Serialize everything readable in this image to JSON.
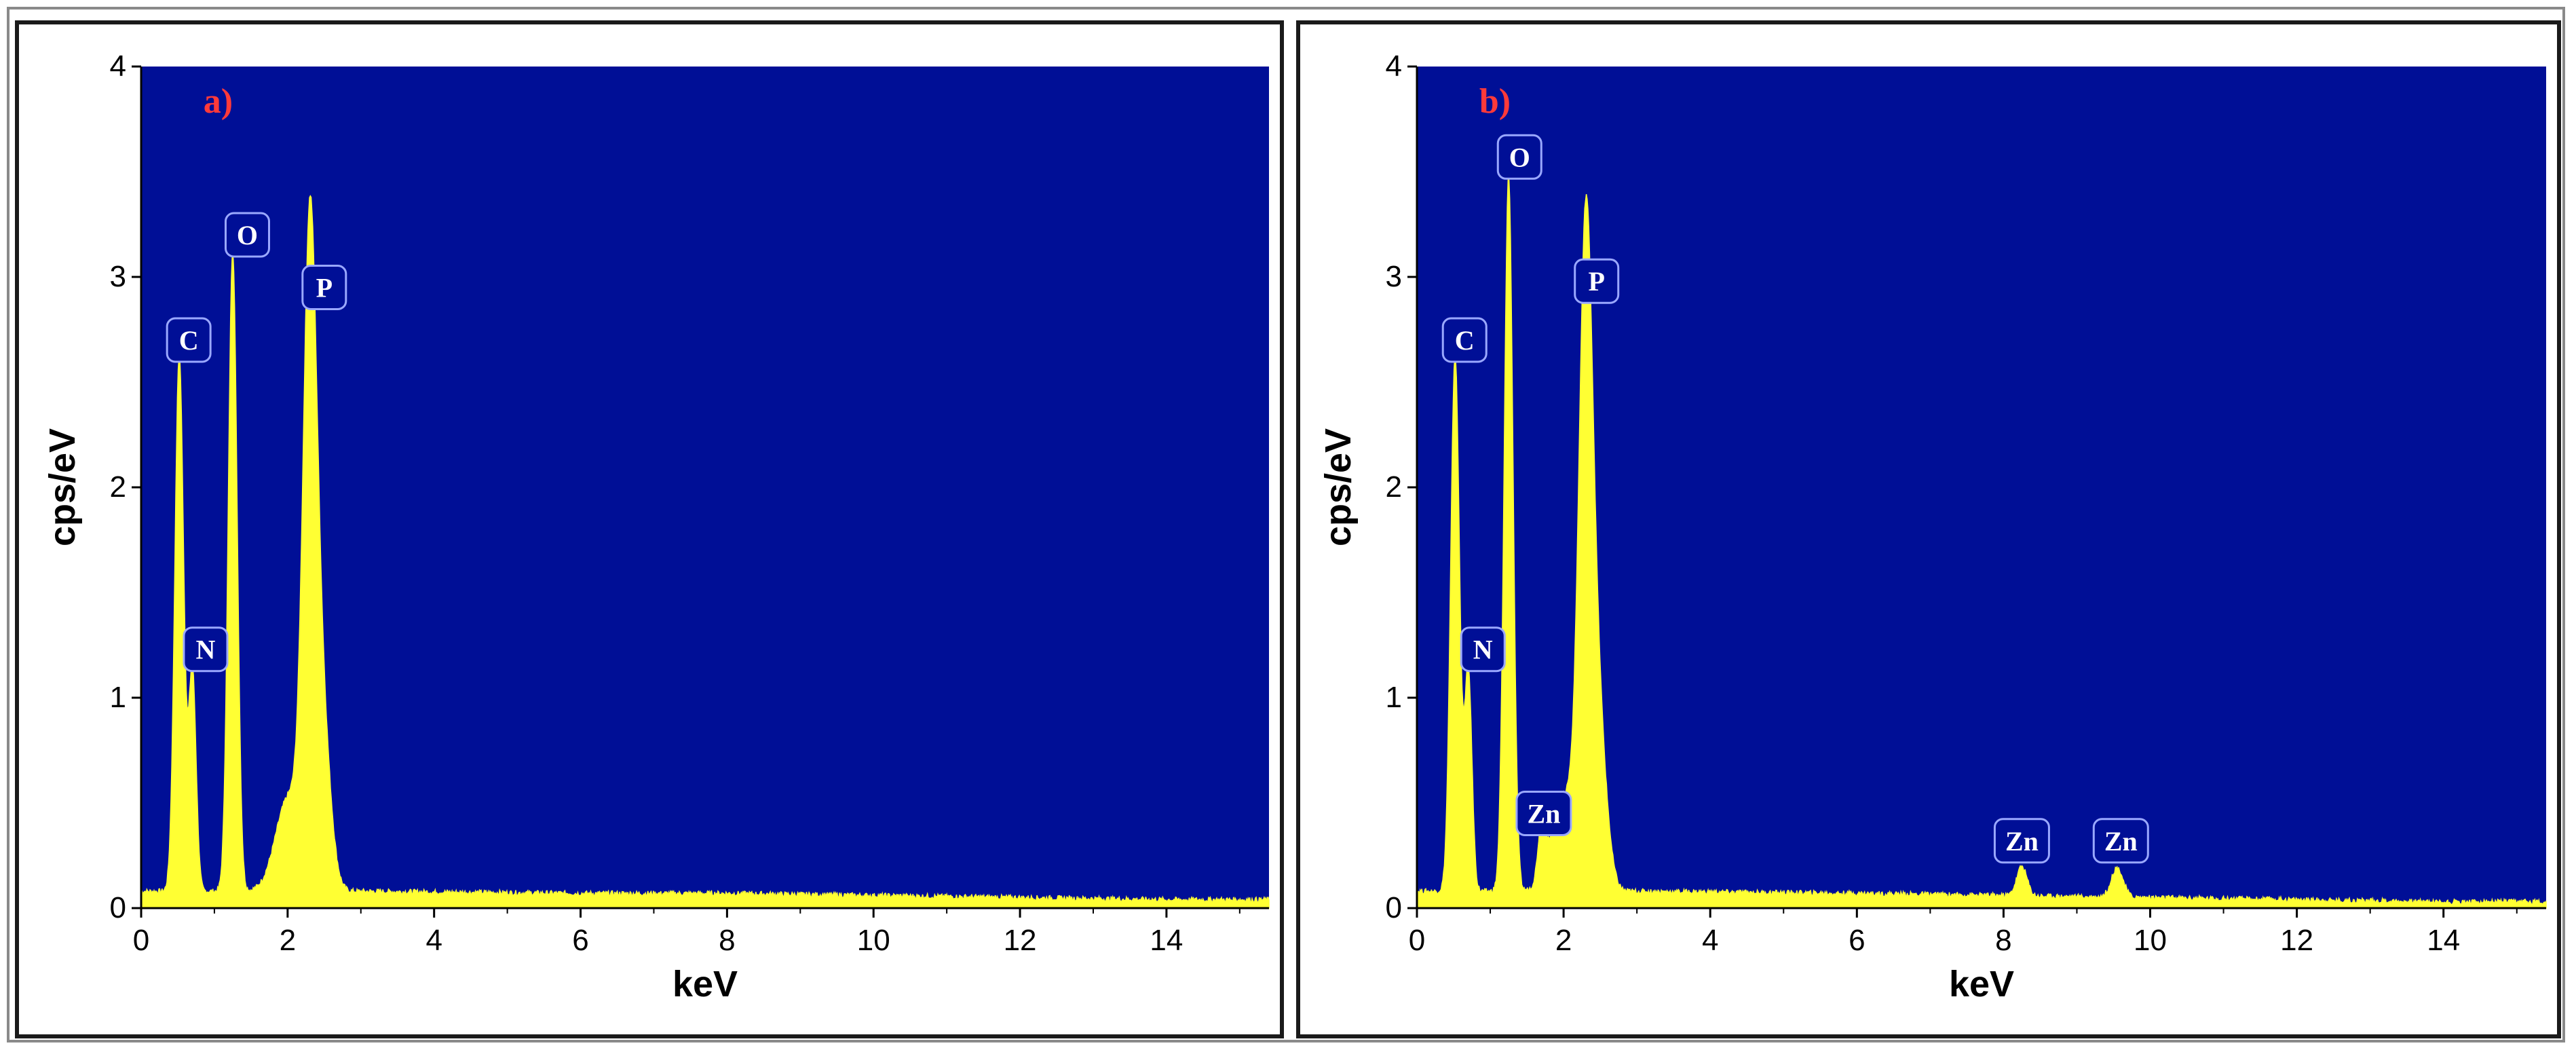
{
  "colors": {
    "plot_bg": "#000f96",
    "spectrum": "#ffff33",
    "panel_label": "#ff3a3a",
    "badge_border": "#9aa8ff"
  },
  "chart_data": [
    {
      "type": "area",
      "panel_label": "a)",
      "xlabel": "keV",
      "ylabel": "cps/eV",
      "xlim": [
        0,
        15.4
      ],
      "ylim": [
        0,
        4
      ],
      "x_ticks": [
        "0",
        "2",
        "4",
        "6",
        "8",
        "10",
        "12",
        "14"
      ],
      "y_ticks": [
        "0",
        "1",
        "2",
        "3",
        "4"
      ],
      "grid": false,
      "baseline": [
        [
          0.0,
          0.08
        ],
        [
          3,
          0.08
        ],
        [
          6,
          0.07
        ],
        [
          8,
          0.07
        ],
        [
          10,
          0.06
        ],
        [
          12,
          0.05
        ],
        [
          14,
          0.04
        ],
        [
          15.4,
          0.04
        ]
      ],
      "peaks": [
        {
          "x": 0.52,
          "height": 2.55,
          "width": 0.06
        },
        {
          "x": 0.7,
          "height": 1.05,
          "width": 0.05
        },
        {
          "x": 1.25,
          "height": 3.05,
          "width": 0.06
        },
        {
          "x": 2.02,
          "height": 0.45,
          "width": 0.18
        },
        {
          "x": 2.3,
          "height": 2.75,
          "width": 0.09
        },
        {
          "x": 2.45,
          "height": 0.9,
          "width": 0.12
        }
      ],
      "annotations": [
        {
          "text": "C",
          "x": 0.65,
          "y": 2.7
        },
        {
          "text": "N",
          "x": 0.88,
          "y": 1.23
        },
        {
          "text": "O",
          "x": 1.45,
          "y": 3.2
        },
        {
          "text": "P",
          "x": 2.5,
          "y": 2.95
        }
      ]
    },
    {
      "type": "area",
      "panel_label": "b)",
      "xlabel": "keV",
      "ylabel": "cps/eV",
      "xlim": [
        0,
        15.4
      ],
      "ylim": [
        0,
        4
      ],
      "x_ticks": [
        "0",
        "2",
        "4",
        "6",
        "8",
        "10",
        "12",
        "14"
      ],
      "y_ticks": [
        "0",
        "1",
        "2",
        "3",
        "4"
      ],
      "grid": false,
      "baseline": [
        [
          0.0,
          0.08
        ],
        [
          3,
          0.08
        ],
        [
          6,
          0.07
        ],
        [
          8,
          0.06
        ],
        [
          10,
          0.05
        ],
        [
          12,
          0.04
        ],
        [
          14,
          0.03
        ],
        [
          15.4,
          0.03
        ]
      ],
      "peaks": [
        {
          "x": 0.52,
          "height": 2.55,
          "width": 0.06
        },
        {
          "x": 0.7,
          "height": 1.05,
          "width": 0.05
        },
        {
          "x": 1.25,
          "height": 3.4,
          "width": 0.06
        },
        {
          "x": 1.7,
          "height": 0.25,
          "width": 0.05
        },
        {
          "x": 2.02,
          "height": 0.45,
          "width": 0.18
        },
        {
          "x": 2.3,
          "height": 2.75,
          "width": 0.09
        },
        {
          "x": 2.45,
          "height": 0.9,
          "width": 0.12
        },
        {
          "x": 8.25,
          "height": 0.14,
          "width": 0.07
        },
        {
          "x": 9.55,
          "height": 0.14,
          "width": 0.08
        }
      ],
      "annotations": [
        {
          "text": "C",
          "x": 0.65,
          "y": 2.7
        },
        {
          "text": "N",
          "x": 0.9,
          "y": 1.23
        },
        {
          "text": "O",
          "x": 1.4,
          "y": 3.57
        },
        {
          "text": "P",
          "x": 2.45,
          "y": 2.98
        },
        {
          "text": "Zn",
          "x": 1.73,
          "y": 0.45
        },
        {
          "text": "Zn",
          "x": 8.25,
          "y": 0.32
        },
        {
          "text": "Zn",
          "x": 9.6,
          "y": 0.32
        }
      ]
    }
  ]
}
